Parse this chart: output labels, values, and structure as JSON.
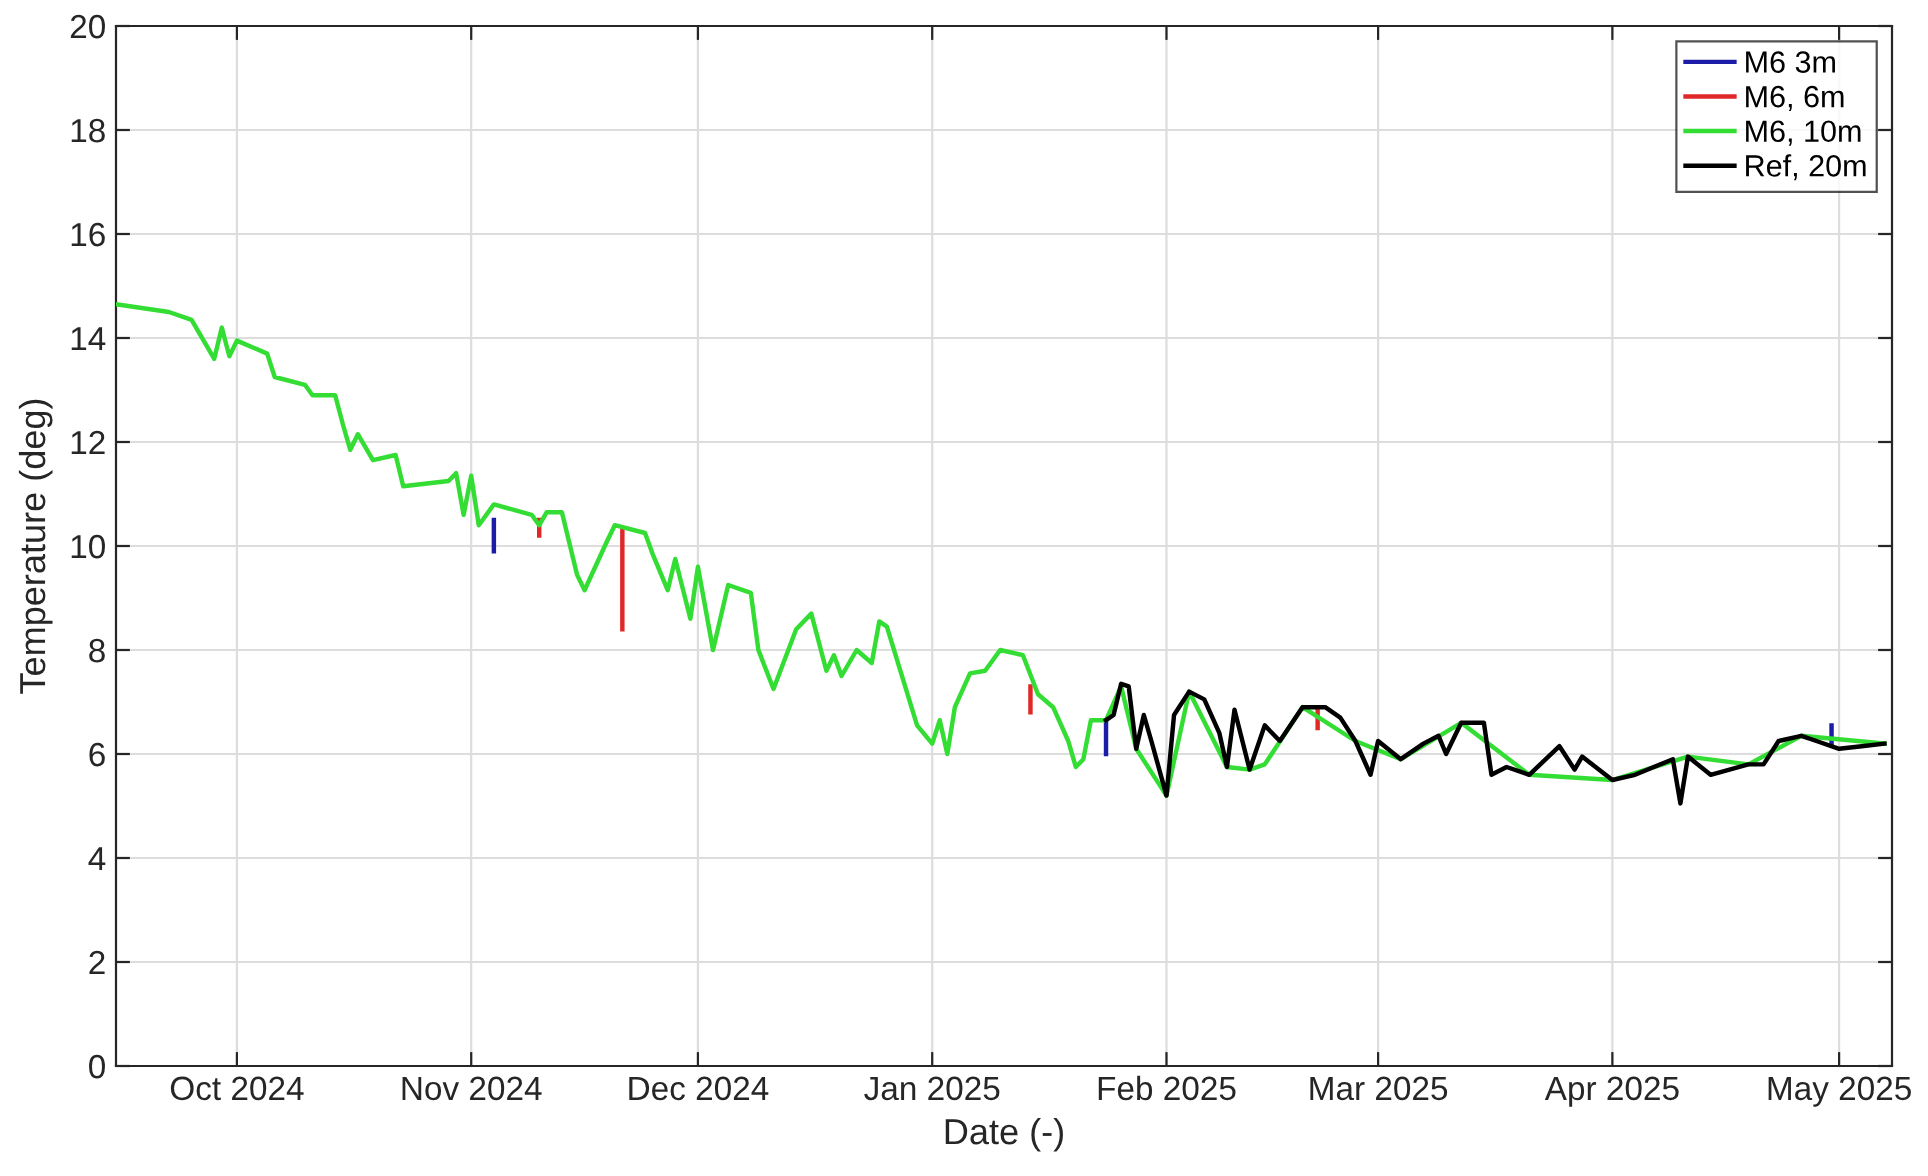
{
  "chart_data": {
    "type": "line",
    "xlabel": "Date (-)",
    "ylabel": "Temperature (deg)",
    "xlim": [
      "2024-09-15",
      "2025-05-08"
    ],
    "xticks": [
      {
        "value": "2024-10-01",
        "label": "Oct 2024"
      },
      {
        "value": "2024-11-01",
        "label": "Nov 2024"
      },
      {
        "value": "2024-12-01",
        "label": "Dec 2024"
      },
      {
        "value": "2025-01-01",
        "label": "Jan 2025"
      },
      {
        "value": "2025-02-01",
        "label": "Feb 2025"
      },
      {
        "value": "2025-03-01",
        "label": "Mar 2025"
      },
      {
        "value": "2025-04-01",
        "label": "Apr 2025"
      },
      {
        "value": "2025-05-01",
        "label": "May 2025"
      }
    ],
    "ylim": [
      0,
      20
    ],
    "yticks": [
      0,
      2,
      4,
      6,
      8,
      10,
      12,
      14,
      16,
      18,
      20
    ],
    "grid": true,
    "legend": "top right",
    "marker": "none",
    "line_style": "solid",
    "series": [
      {
        "name": "M6 3m",
        "color": "#1c1ca8",
        "x": [
          "2024-11-04",
          "2024-11-04",
          "2024-11-05",
          "2025-01-24",
          "2025-01-24",
          "2025-01-25",
          "2025-04-30",
          "2025-04-30"
        ],
        "values": [
          10.5,
          9.9,
          null,
          6.6,
          6.0,
          null,
          6.2,
          6.55
        ]
      },
      {
        "name": "M6, 6m",
        "color": "#e02828",
        "x": [
          "2024-11-10",
          "2024-11-10",
          "2024-11-11",
          "2024-11-21",
          "2024-11-21",
          "2024-11-22",
          "2025-01-14",
          "2025-01-14",
          "2025-01-15",
          "2025-02-21",
          "2025-02-21"
        ],
        "values": [
          10.5,
          10.2,
          null,
          10.3,
          8.4,
          null,
          7.3,
          6.8,
          null,
          6.9,
          6.5
        ]
      },
      {
        "name": "M6, 10m",
        "color": "#33dd33",
        "x": [
          "2024-09-15",
          "2024-09-22",
          "2024-09-25",
          "2024-09-28",
          "2024-09-29",
          "2024-09-30",
          "2024-10-01",
          "2024-10-05",
          "2024-10-06",
          "2024-10-10",
          "2024-10-11",
          "2024-10-14",
          "2024-10-15",
          "2024-10-16",
          "2024-10-17",
          "2024-10-19",
          "2024-10-22",
          "2024-10-23",
          "2024-10-29",
          "2024-10-30",
          "2024-10-31",
          "2024-11-01",
          "2024-11-02",
          "2024-11-04",
          "2024-11-09",
          "2024-11-10",
          "2024-11-11",
          "2024-11-13",
          "2024-11-15",
          "2024-11-16",
          "2024-11-19",
          "2024-11-20",
          "2024-11-24",
          "2024-11-25",
          "2024-11-27",
          "2024-11-28",
          "2024-11-30",
          "2024-12-01",
          "2024-12-03",
          "2024-12-05",
          "2024-12-08",
          "2024-12-09",
          "2024-12-11",
          "2024-12-14",
          "2024-12-16",
          "2024-12-18",
          "2024-12-19",
          "2024-12-20",
          "2024-12-22",
          "2024-12-24",
          "2024-12-25",
          "2024-12-26",
          "2024-12-30",
          "2025-01-01",
          "2025-01-02",
          "2025-01-03",
          "2025-01-04",
          "2025-01-06",
          "2025-01-08",
          "2025-01-10",
          "2025-01-13",
          "2025-01-15",
          "2025-01-17",
          "2025-01-19",
          "2025-01-20",
          "2025-01-21",
          "2025-01-22",
          "2025-01-24",
          "2025-01-26",
          "2025-01-28",
          "2025-02-01",
          "2025-02-04",
          "2025-02-09",
          "2025-02-12",
          "2025-02-14",
          "2025-02-19",
          "2025-02-26",
          "2025-03-04",
          "2025-03-12",
          "2025-03-21",
          "2025-04-01",
          "2025-04-11",
          "2025-04-19",
          "2025-04-26",
          "2025-05-07"
        ],
        "values": [
          14.65,
          14.5,
          14.35,
          13.6,
          14.2,
          13.65,
          13.95,
          13.7,
          13.25,
          13.1,
          12.9,
          12.9,
          12.35,
          11.85,
          12.15,
          11.65,
          11.75,
          11.15,
          11.25,
          11.4,
          10.6,
          11.35,
          10.4,
          10.8,
          10.6,
          10.4,
          10.65,
          10.65,
          9.45,
          9.15,
          10.1,
          10.4,
          10.25,
          9.85,
          9.15,
          9.75,
          8.6,
          9.6,
          8.0,
          9.25,
          9.1,
          8.0,
          7.25,
          8.4,
          8.7,
          7.6,
          7.9,
          7.5,
          8.0,
          7.75,
          8.55,
          8.45,
          6.55,
          6.2,
          6.65,
          6.0,
          6.9,
          7.55,
          7.6,
          8.0,
          7.9,
          7.15,
          6.9,
          6.25,
          5.75,
          5.9,
          6.65,
          6.65,
          7.3,
          6.1,
          5.2,
          7.2,
          5.75,
          5.7,
          5.8,
          6.9,
          6.25,
          5.9,
          6.6,
          5.6,
          5.5,
          5.95,
          5.8,
          6.35,
          6.2
        ]
      },
      {
        "name": "Ref, 20m",
        "color": "#000000",
        "x": [
          "2025-01-24",
          "2025-01-25",
          "2025-01-26",
          "2025-01-27",
          "2025-01-28",
          "2025-01-29",
          "2025-01-30",
          "2025-02-01",
          "2025-02-02",
          "2025-02-04",
          "2025-02-06",
          "2025-02-08",
          "2025-02-09",
          "2025-02-10",
          "2025-02-12",
          "2025-02-14",
          "2025-02-16",
          "2025-02-19",
          "2025-02-22",
          "2025-02-24",
          "2025-02-26",
          "2025-02-28",
          "2025-03-01",
          "2025-03-04",
          "2025-03-07",
          "2025-03-09",
          "2025-03-10",
          "2025-03-12",
          "2025-03-15",
          "2025-03-16",
          "2025-03-18",
          "2025-03-21",
          "2025-03-25",
          "2025-03-27",
          "2025-03-28",
          "2025-04-01",
          "2025-04-04",
          "2025-04-09",
          "2025-04-10",
          "2025-04-11",
          "2025-04-14",
          "2025-04-19",
          "2025-04-21",
          "2025-04-23",
          "2025-04-26",
          "2025-04-28",
          "2025-05-01",
          "2025-05-04",
          "2025-05-07"
        ],
        "values": [
          6.65,
          6.75,
          7.35,
          7.3,
          6.1,
          6.75,
          6.25,
          5.2,
          6.75,
          7.2,
          7.05,
          6.4,
          5.75,
          6.85,
          5.7,
          6.55,
          6.25,
          6.9,
          6.9,
          6.7,
          6.25,
          5.6,
          6.25,
          5.9,
          6.2,
          6.35,
          6.0,
          6.6,
          6.6,
          5.6,
          5.75,
          5.6,
          6.15,
          5.7,
          5.95,
          5.5,
          5.6,
          5.9,
          5.05,
          5.95,
          5.6,
          5.8,
          5.8,
          6.25,
          6.35,
          6.25,
          6.1,
          6.15,
          6.2
        ]
      }
    ]
  }
}
